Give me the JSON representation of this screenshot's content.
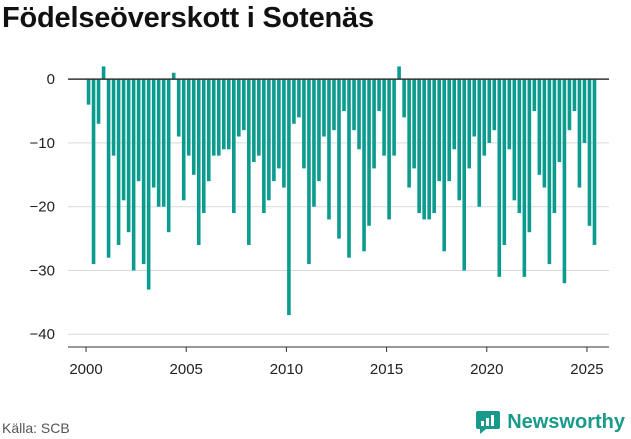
{
  "header": {
    "title": "Födelseöverskott i Sotenäs"
  },
  "footer": {
    "source": "Källa: SCB",
    "brand": "Newsworthy"
  },
  "colors": {
    "bar": "#0c9c8f",
    "grid": "#d9d9d9",
    "zero_line": "#333333",
    "brand": "#1a9a8b"
  },
  "chart_data": {
    "type": "bar",
    "title": "Födelseöverskott i Sotenäs",
    "xlabel": "",
    "ylabel": "",
    "x_ticks": [
      2000,
      2005,
      2010,
      2015,
      2020,
      2025
    ],
    "y_ticks": [
      0,
      -10,
      -20,
      -30,
      -40
    ],
    "x_tick_labels": [
      "2000",
      "2005",
      "2010",
      "2015",
      "2020",
      "2025"
    ],
    "y_tick_labels": [
      "0",
      "−10",
      "−20",
      "−30",
      "−40"
    ],
    "xlim": [
      1999.1,
      2026.1
    ],
    "ylim": [
      -42,
      3
    ],
    "grid": true,
    "legend": "none",
    "start": "2000-01",
    "frequency": "quarterly",
    "values": [
      -4,
      -29,
      -7,
      2,
      -28,
      -12,
      -26,
      -19,
      -24,
      -30,
      -16,
      -29,
      -33,
      -17,
      -20,
      -20,
      -24,
      1,
      -9,
      -19,
      -12,
      -15,
      -26,
      -21,
      -16,
      -12,
      -12,
      -11,
      -11,
      -21,
      -9,
      -8,
      -26,
      -13,
      -12,
      -21,
      -19,
      -16,
      -14,
      -17,
      -37,
      -7,
      -6,
      -14,
      -29,
      -20,
      -16,
      -9,
      -22,
      -8,
      -25,
      -5,
      -28,
      -8,
      -11,
      -27,
      -23,
      -14,
      -5,
      -12,
      -22,
      -12,
      2,
      -6,
      -17,
      -14,
      -21,
      -22,
      -22,
      -21,
      -16,
      -27,
      -16,
      -11,
      -19,
      -30,
      -14,
      -9,
      -20,
      -12,
      -10,
      -8,
      -31,
      -26,
      -11,
      -19,
      -21,
      -31,
      -24,
      -5,
      -15,
      -17,
      -29,
      -21,
      -13,
      -32,
      -8,
      -5,
      -17,
      -10,
      -23,
      -26
    ]
  }
}
